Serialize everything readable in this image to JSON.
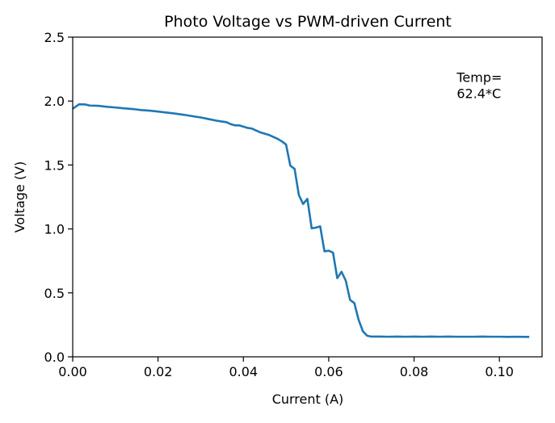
{
  "chart_data": {
    "type": "line",
    "title": "Photo Voltage vs PWM-driven Current",
    "xlabel": "Current (A)",
    "ylabel": "Voltage (V)",
    "xlim": [
      0,
      0.11
    ],
    "ylim": [
      0,
      2.5
    ],
    "x_ticks": [
      0,
      0.02,
      0.04,
      0.06,
      0.08,
      0.1
    ],
    "x_tick_labels": [
      "0.00",
      "0.02",
      "0.04",
      "0.06",
      "0.08",
      "0.10"
    ],
    "y_ticks": [
      0,
      0.5,
      1.0,
      1.5,
      2.0,
      2.5
    ],
    "y_tick_labels": [
      "0.0",
      "0.5",
      "1.0",
      "1.5",
      "2.0",
      "2.5"
    ],
    "grid": false,
    "annotation": {
      "lines": [
        "Temp=",
        "62.4*C"
      ],
      "x": 0.09,
      "y": 2.06
    },
    "series": [
      {
        "color": "#1f77b4",
        "points": [
          [
            0.0,
            1.94
          ],
          [
            0.0015,
            1.975
          ],
          [
            0.003,
            1.973
          ],
          [
            0.004,
            1.965
          ],
          [
            0.006,
            1.963
          ],
          [
            0.008,
            1.955
          ],
          [
            0.01,
            1.95
          ],
          [
            0.012,
            1.943
          ],
          [
            0.014,
            1.938
          ],
          [
            0.016,
            1.93
          ],
          [
            0.018,
            1.925
          ],
          [
            0.02,
            1.918
          ],
          [
            0.022,
            1.91
          ],
          [
            0.024,
            1.902
          ],
          [
            0.026,
            1.893
          ],
          [
            0.028,
            1.882
          ],
          [
            0.03,
            1.872
          ],
          [
            0.032,
            1.858
          ],
          [
            0.034,
            1.845
          ],
          [
            0.035,
            1.84
          ],
          [
            0.036,
            1.835
          ],
          [
            0.037,
            1.82
          ],
          [
            0.038,
            1.81
          ],
          [
            0.039,
            1.81
          ],
          [
            0.04,
            1.8
          ],
          [
            0.041,
            1.79
          ],
          [
            0.042,
            1.785
          ],
          [
            0.043,
            1.77
          ],
          [
            0.044,
            1.755
          ],
          [
            0.045,
            1.745
          ],
          [
            0.046,
            1.735
          ],
          [
            0.047,
            1.72
          ],
          [
            0.048,
            1.705
          ],
          [
            0.049,
            1.685
          ],
          [
            0.05,
            1.66
          ],
          [
            0.051,
            1.495
          ],
          [
            0.052,
            1.47
          ],
          [
            0.053,
            1.265
          ],
          [
            0.054,
            1.195
          ],
          [
            0.055,
            1.235
          ],
          [
            0.056,
            1.005
          ],
          [
            0.057,
            1.01
          ],
          [
            0.058,
            1.02
          ],
          [
            0.059,
            0.825
          ],
          [
            0.06,
            0.83
          ],
          [
            0.061,
            0.815
          ],
          [
            0.062,
            0.615
          ],
          [
            0.063,
            0.665
          ],
          [
            0.064,
            0.595
          ],
          [
            0.065,
            0.445
          ],
          [
            0.066,
            0.42
          ],
          [
            0.067,
            0.29
          ],
          [
            0.068,
            0.2
          ],
          [
            0.069,
            0.165
          ],
          [
            0.07,
            0.158
          ],
          [
            0.072,
            0.158
          ],
          [
            0.074,
            0.157
          ],
          [
            0.076,
            0.158
          ],
          [
            0.078,
            0.157
          ],
          [
            0.08,
            0.158
          ],
          [
            0.082,
            0.157
          ],
          [
            0.084,
            0.158
          ],
          [
            0.086,
            0.157
          ],
          [
            0.088,
            0.158
          ],
          [
            0.09,
            0.157
          ],
          [
            0.092,
            0.157
          ],
          [
            0.094,
            0.157
          ],
          [
            0.096,
            0.158
          ],
          [
            0.098,
            0.157
          ],
          [
            0.1,
            0.157
          ],
          [
            0.102,
            0.156
          ],
          [
            0.104,
            0.157
          ],
          [
            0.106,
            0.156
          ],
          [
            0.107,
            0.156
          ]
        ]
      }
    ]
  }
}
